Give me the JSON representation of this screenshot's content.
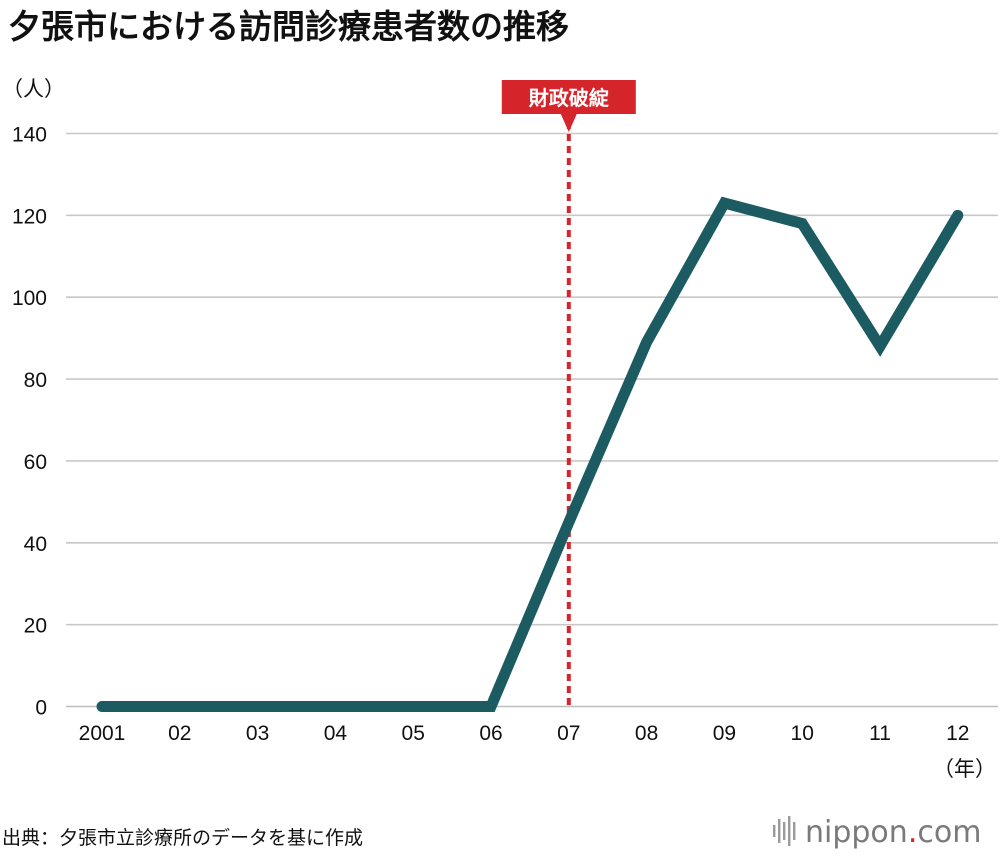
{
  "chart_data": {
    "type": "line",
    "title": "夕張市における訪問診療患者数の推移",
    "ylabel": "（人）",
    "xlabel": "（年）",
    "categories": [
      "2001",
      "02",
      "03",
      "04",
      "05",
      "06",
      "07",
      "08",
      "09",
      "10",
      "11",
      "12"
    ],
    "series": [
      {
        "values": [
          0,
          0,
          0,
          0,
          0,
          0,
          45,
          89,
          123,
          118,
          88,
          120
        ]
      }
    ],
    "ylim": [
      0,
      140
    ],
    "yticks": [
      0,
      20,
      40,
      60,
      80,
      100,
      120,
      140
    ],
    "grid": true,
    "annotations": [
      {
        "label": "財政破綻",
        "x": "07"
      }
    ],
    "colors": {
      "line": "#1c5b61",
      "annotation": "#d6242b",
      "grid": "#c8c8c8"
    }
  },
  "footer": {
    "source": "出典：夕張市立診療所のデータを基に作成",
    "logo_brand": "nippon",
    "logo_dot": ".",
    "logo_suffix": "com",
    "logo_icon": "sound-bars-icon"
  }
}
